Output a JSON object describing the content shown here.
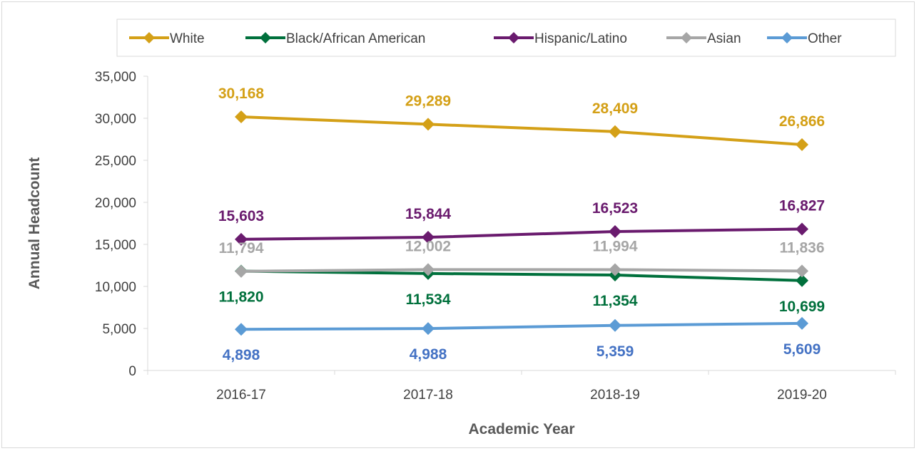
{
  "chart_data": {
    "type": "line",
    "title": "",
    "xlabel": "Academic Year",
    "ylabel": "Annual Headcount",
    "categories": [
      "2016-17",
      "2017-18",
      "2018-19",
      "2019-20"
    ],
    "ylim": [
      0,
      35000
    ],
    "yticks": [
      0,
      5000,
      10000,
      15000,
      20000,
      25000,
      30000,
      35000
    ],
    "ytick_labels": [
      "0",
      "5,000",
      "10,000",
      "15,000",
      "20,000",
      "25,000",
      "30,000",
      "35,000"
    ],
    "grid": false,
    "legend_position": "top",
    "marker": "diamond",
    "series": [
      {
        "name": "White",
        "color": "#D4A017",
        "values": [
          30168,
          29289,
          28409,
          26866
        ],
        "labels": [
          "30,168",
          "29,289",
          "28,409",
          "26,866"
        ],
        "label_position": "above"
      },
      {
        "name": "Black/African American",
        "color": "#00703C",
        "values": [
          11820,
          11534,
          11354,
          10699
        ],
        "labels": [
          "11,820",
          "11,534",
          "11,354",
          "10,699"
        ],
        "label_position": "below"
      },
      {
        "name": "Hispanic/Latino",
        "color": "#6A1B6E",
        "values": [
          15603,
          15844,
          16523,
          16827
        ],
        "labels": [
          "15,603",
          "15,844",
          "16,523",
          "16,827"
        ],
        "label_position": "above"
      },
      {
        "name": "Asian",
        "color": "#A6A6A6",
        "values": [
          11794,
          12002,
          11994,
          11836
        ],
        "labels": [
          "11,794",
          "12,002",
          "11,994",
          "11,836"
        ],
        "label_position": "above"
      },
      {
        "name": "Other",
        "color": "#5B9BD5",
        "label_color": "#4472C4",
        "values": [
          4898,
          4988,
          5359,
          5609
        ],
        "labels": [
          "4,898",
          "4,988",
          "5,359",
          "5,609"
        ],
        "label_position": "below"
      }
    ]
  }
}
